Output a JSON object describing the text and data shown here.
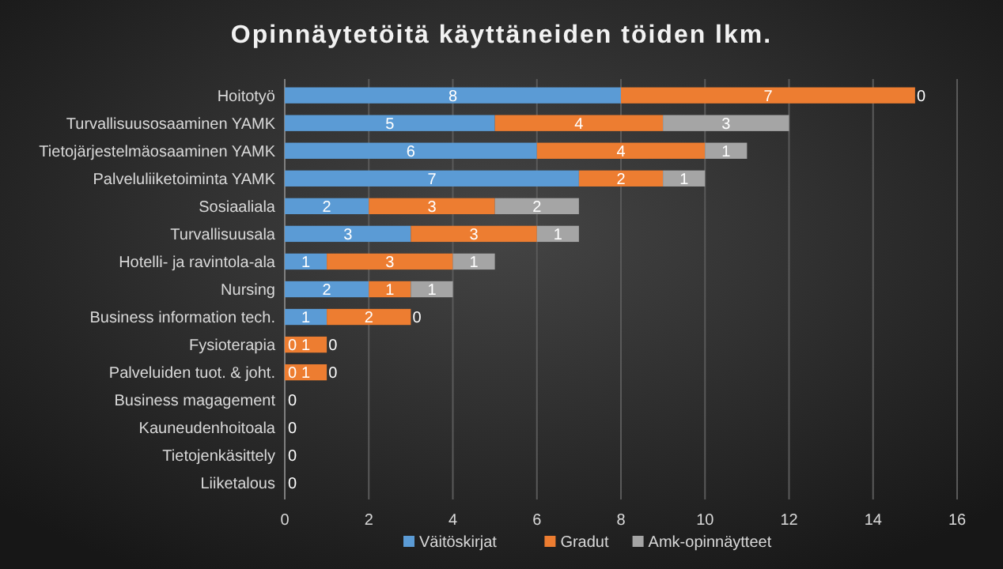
{
  "chart_data": {
    "type": "bar",
    "orientation": "horizontal",
    "stacked": true,
    "title": "Opinnäytetöitä käyttäneiden töiden lkm.",
    "categories": [
      "Hoitotyö",
      "Turvallisuusosaaminen YAMK",
      "Tietojärjestelmäosaaminen YAMK",
      "Palveluliiketoiminta YAMK",
      "Sosiaaliala",
      "Turvallisuusala",
      "Hotelli- ja ravintola-ala",
      "Nursing",
      "Business information tech.",
      "Fysioterapia",
      "Palveluiden tuot. & joht.",
      "Business magagement",
      "Kauneudenhoitoala",
      "Tietojenkäsittely",
      "Liiketalous"
    ],
    "series": [
      {
        "name": "Väitöskirjat",
        "color": "#5b9bd5",
        "values": [
          8,
          5,
          6,
          7,
          2,
          3,
          1,
          2,
          1,
          0,
          0,
          0,
          0,
          0,
          0
        ],
        "value_labels": [
          "8",
          "5",
          "6",
          "7",
          "2",
          "3",
          "1",
          "2",
          "1",
          "0",
          "0",
          "0",
          "0",
          "0",
          "0"
        ]
      },
      {
        "name": "Gradut",
        "color": "#ed7d31",
        "values": [
          7,
          4,
          4,
          2,
          3,
          3,
          3,
          1,
          2,
          1,
          1,
          0,
          0,
          0,
          0
        ],
        "value_labels": [
          "7",
          "4",
          "4",
          "2",
          "3",
          "3",
          "3",
          "1",
          "2",
          "1",
          "1",
          null,
          null,
          null,
          null
        ]
      },
      {
        "name": "Amk-opinnäytteet",
        "color": "#a5a5a5",
        "values": [
          0,
          3,
          1,
          1,
          2,
          1,
          1,
          1,
          0,
          0,
          0,
          0,
          0,
          0,
          0
        ],
        "value_labels": [
          "0",
          "3",
          "1",
          "1",
          "2",
          "1",
          "1",
          "1",
          "0",
          "0",
          "0",
          null,
          null,
          null,
          null
        ]
      }
    ],
    "xlim": [
      0,
      16
    ],
    "xticks": [
      0,
      2,
      4,
      6,
      8,
      10,
      12,
      14,
      16
    ],
    "grid": "x",
    "legend": "bottom"
  }
}
